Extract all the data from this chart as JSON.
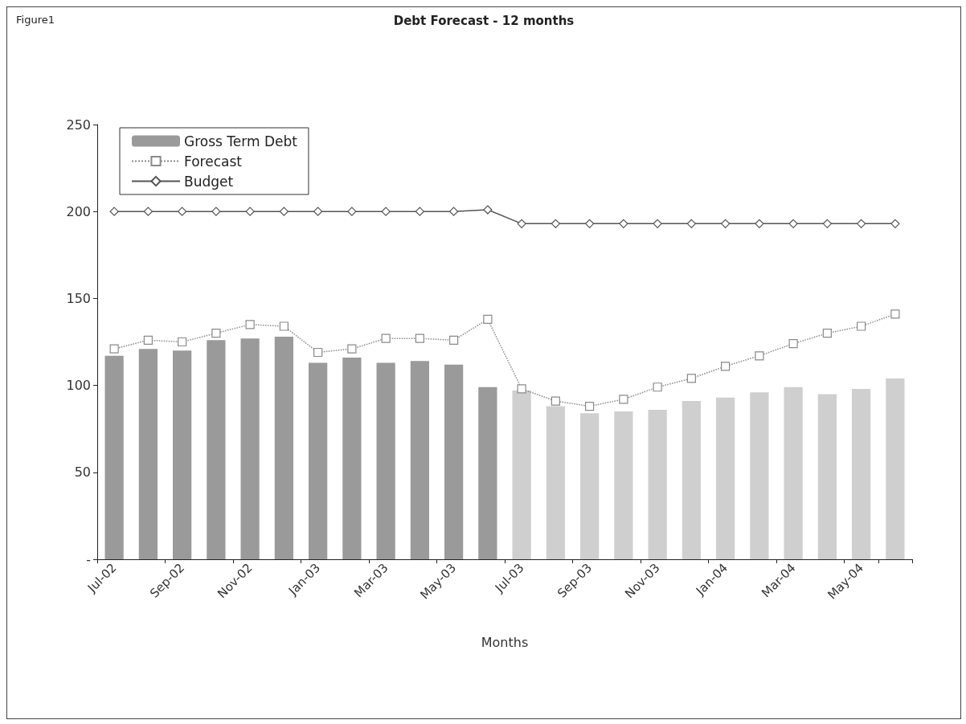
{
  "chart_data": {
    "type": "bar",
    "title": "Debt Forecast - 12 months",
    "xlabel": "Months",
    "annotations": [
      "Figure1"
    ],
    "categories": [
      "Jul-02",
      null,
      "Sep-02",
      null,
      "Nov-02",
      null,
      "Jan-03",
      null,
      "Mar-03",
      null,
      "May-03",
      null,
      "Jul-03",
      null,
      "Sep-03",
      null,
      "Nov-03",
      null,
      "Jan-04",
      null,
      "Mar-04",
      null,
      "May-04",
      null
    ],
    "series": [
      {
        "name": "Gross Term Debt",
        "colors": [
          "#9a9a9a",
          "#9a9a9a",
          "#9a9a9a",
          "#9a9a9a",
          "#9a9a9a",
          "#9a9a9a",
          "#9a9a9a",
          "#9a9a9a",
          "#9a9a9a",
          "#9a9a9a",
          "#9a9a9a",
          "#9a9a9a",
          "#cfcfcf",
          "#cfcfcf",
          "#cfcfcf",
          "#cfcfcf",
          "#cfcfcf",
          "#cfcfcf",
          "#cfcfcf",
          "#cfcfcf",
          "#cfcfcf",
          "#cfcfcf",
          "#cfcfcf",
          "#cfcfcf"
        ],
        "values": [
          117,
          121,
          120,
          126,
          127,
          128,
          113,
          116,
          113,
          114,
          112,
          99,
          97,
          88,
          84,
          85,
          86,
          91,
          93,
          96,
          99,
          95,
          98,
          104
        ]
      },
      {
        "name": "Forecast",
        "type": "line",
        "color": "#8a8a8a",
        "marker": "square",
        "line_style": "dotted",
        "values": [
          121,
          126,
          125,
          130,
          135,
          134,
          119,
          121,
          127,
          127,
          126,
          138,
          98,
          91,
          88,
          92,
          99,
          104,
          111,
          117,
          124,
          130,
          134,
          141
        ]
      },
      {
        "name": "Budget",
        "type": "line",
        "color": "#555555",
        "marker": "diamond",
        "line_style": "solid",
        "values": [
          200,
          200,
          200,
          200,
          200,
          200,
          200,
          200,
          200,
          200,
          200,
          201,
          193,
          193,
          193,
          193,
          193,
          193,
          193,
          193,
          193,
          193,
          193,
          193
        ]
      }
    ],
    "ylim": [
      0,
      250
    ],
    "yticks": [
      {
        "value": 0,
        "label": "-"
      },
      50,
      100,
      150,
      200,
      250
    ],
    "legend": "top left"
  }
}
